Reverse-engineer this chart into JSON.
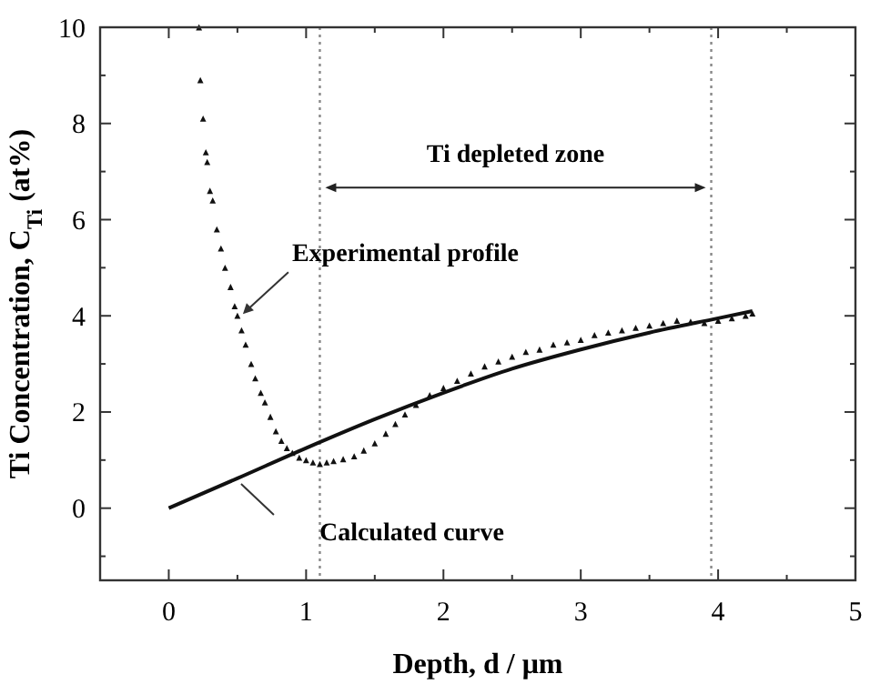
{
  "chart_data": {
    "type": "scatter",
    "xlabel": "Depth, d / μm",
    "ylabel": "Ti Concentration, C$_{Ti}$ (at%)",
    "xlim": [
      -0.5,
      5
    ],
    "ylim": [
      -1.5,
      10
    ],
    "xticks": [
      {
        "value": -0.5,
        "label": null
      },
      0,
      {
        "value": 0.5,
        "label": null
      },
      1,
      {
        "value": 1.5,
        "label": null
      },
      2,
      {
        "value": 2.5,
        "label": null
      },
      3,
      {
        "value": 3.5,
        "label": null
      },
      4,
      {
        "value": 4.5,
        "label": null
      },
      5
    ],
    "yticks": [
      {
        "value": -1,
        "label": null
      },
      0,
      {
        "value": 1,
        "label": null
      },
      2,
      {
        "value": 3,
        "label": null
      },
      4,
      {
        "value": 5,
        "label": null
      },
      6,
      {
        "value": 7,
        "label": null
      },
      8,
      {
        "value": 9,
        "label": null
      },
      10
    ],
    "grid": false,
    "series": [
      {
        "marker": "triangle",
        "color": "#111111",
        "x": [
          0.22,
          0.23,
          0.25,
          0.27,
          0.28,
          0.3,
          0.32,
          0.35,
          0.38,
          0.41,
          0.45,
          0.48,
          0.5,
          0.53,
          0.56,
          0.6,
          0.63,
          0.67,
          0.7,
          0.74,
          0.78,
          0.82,
          0.86,
          0.9,
          0.95,
          1.0,
          1.05,
          1.1,
          1.15,
          1.2,
          1.27,
          1.35,
          1.42,
          1.5,
          1.58,
          1.65,
          1.72,
          1.8,
          1.9,
          2.0,
          2.1,
          2.2,
          2.3,
          2.4,
          2.5,
          2.6,
          2.7,
          2.8,
          2.9,
          3.0,
          3.1,
          3.2,
          3.3,
          3.4,
          3.5,
          3.6,
          3.7,
          3.8,
          3.9,
          4.0,
          4.1,
          4.2,
          4.25
        ],
        "values": [
          10,
          8.9,
          8.1,
          7.4,
          7.2,
          6.6,
          6.4,
          5.8,
          5.4,
          5.0,
          4.6,
          4.2,
          4.0,
          3.7,
          3.4,
          3.0,
          2.7,
          2.4,
          2.2,
          1.9,
          1.6,
          1.4,
          1.25,
          1.15,
          1.05,
          1.0,
          0.95,
          0.92,
          0.95,
          0.98,
          1.02,
          1.08,
          1.2,
          1.35,
          1.55,
          1.75,
          1.95,
          2.15,
          2.35,
          2.5,
          2.65,
          2.8,
          2.95,
          3.05,
          3.15,
          3.25,
          3.3,
          3.4,
          3.45,
          3.5,
          3.6,
          3.65,
          3.7,
          3.75,
          3.8,
          3.85,
          3.9,
          3.88,
          3.85,
          3.9,
          3.95,
          4.0,
          4.05
        ]
      },
      {
        "type": "line",
        "marker": "none",
        "line_style": "solid",
        "color": "#111111",
        "x": [
          0,
          0.5,
          1.0,
          1.5,
          2.0,
          2.5,
          3.0,
          3.5,
          4.0,
          4.25
        ],
        "values": [
          0,
          0.62,
          1.25,
          1.85,
          2.4,
          2.9,
          3.3,
          3.65,
          3.95,
          4.1
        ]
      }
    ],
    "ref_lines": [
      {
        "axis": "x",
        "value": 1.1,
        "line_style": "dotted",
        "color": "#888888"
      },
      {
        "axis": "x",
        "value": 3.95,
        "line_style": "dotted",
        "color": "#888888"
      }
    ],
    "annotations": [
      "Ti depleted zone",
      "Experimental profile",
      "Calculated curve"
    ]
  }
}
